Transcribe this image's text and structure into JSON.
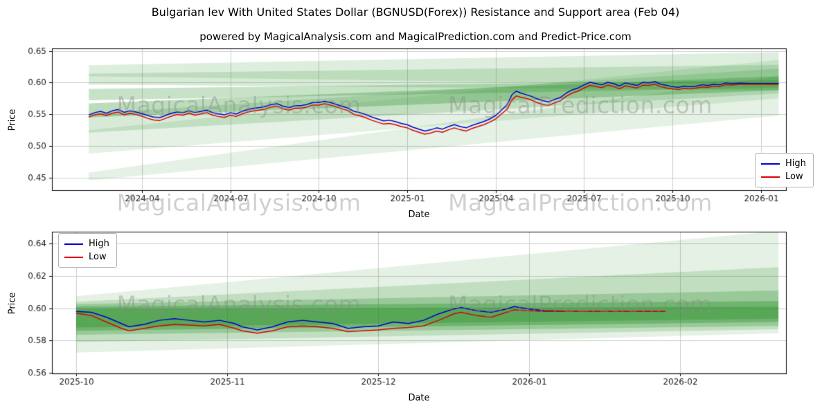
{
  "figure": {
    "title": "Bulgarian lev With United States Dollar (BGNUSD(Forex)) Resistance and Support area (Feb 04)",
    "subtitle": "powered by MagicalAnalysis.com and MagicalPrediction.com and Predict-Price.com",
    "watermarks": {
      "left": "MagicalAnalysis.com",
      "right": "MagicalPrediction.com"
    }
  },
  "chart_data": [
    {
      "type": "line",
      "title": "",
      "xlabel": "Date",
      "ylabel": "Price",
      "grid": true,
      "xlim": [
        -0.05,
        24.85
      ],
      "ylim": [
        0.43,
        0.654
      ],
      "xticks": {
        "values": [
          3,
          6,
          9,
          12,
          15,
          18,
          21,
          24
        ],
        "labels": [
          "2024-04",
          "2024-07",
          "2024-10",
          "2025-01",
          "2025-04",
          "2025-07",
          "2025-10",
          "2026-01"
        ]
      },
      "yticks": {
        "values": [
          0.45,
          0.5,
          0.55,
          0.6,
          0.65
        ],
        "labels": [
          "0.45",
          "0.50",
          "0.55",
          "0.60",
          "0.65"
        ]
      },
      "legend": {
        "position": "center-right",
        "entries": [
          {
            "label": "High",
            "color": "#0000cc"
          },
          {
            "label": "Low",
            "color": "#dd0000"
          }
        ]
      },
      "band_color": "#228b22",
      "bands": [
        {
          "alpha": 0.12,
          "t": [
            1.2,
            24.6
          ],
          "left": [
            0.4455,
            0.458
          ],
          "right": [
            0.548,
            0.61
          ]
        },
        {
          "alpha": 0.12,
          "t": [
            1.2,
            24.6
          ],
          "left": [
            0.488,
            0.525
          ],
          "right": [
            0.575,
            0.636
          ]
        },
        {
          "alpha": 0.18,
          "t": [
            1.2,
            24.6
          ],
          "left": [
            0.521,
            0.551
          ],
          "right": [
            0.583,
            0.622
          ]
        },
        {
          "alpha": 0.3,
          "t": [
            1.2,
            24.6
          ],
          "left": [
            0.545,
            0.567
          ],
          "right": [
            0.588,
            0.61
          ]
        },
        {
          "alpha": 0.25,
          "t": [
            1.2,
            24.6
          ],
          "left": [
            0.572,
            0.59
          ],
          "right": [
            0.592,
            0.604
          ]
        },
        {
          "alpha": 0.18,
          "t": [
            1.2,
            24.6
          ],
          "left": [
            0.597,
            0.614
          ],
          "right": [
            0.588,
            0.628
          ]
        },
        {
          "alpha": 0.15,
          "t": [
            1.2,
            24.6
          ],
          "left": [
            0.61,
            0.6275
          ],
          "right": [
            0.595,
            0.648
          ]
        }
      ],
      "series": [
        {
          "name": "High",
          "color": "#0000cc",
          "index": 1
        },
        {
          "name": "Low",
          "color": "#dd0000",
          "index": 2
        }
      ],
      "points": [
        [
          1.2,
          0.549,
          0.5455
        ],
        [
          1.4,
          0.5525,
          0.549
        ],
        [
          1.6,
          0.5545,
          0.5505
        ],
        [
          1.8,
          0.5515,
          0.548
        ],
        [
          2.0,
          0.5555,
          0.5515
        ],
        [
          2.2,
          0.5575,
          0.5535
        ],
        [
          2.4,
          0.553,
          0.549
        ],
        [
          2.6,
          0.5555,
          0.5515
        ],
        [
          2.8,
          0.5535,
          0.5495
        ],
        [
          3.0,
          0.551,
          0.547
        ],
        [
          3.2,
          0.548,
          0.5435
        ],
        [
          3.4,
          0.5455,
          0.541
        ],
        [
          3.6,
          0.5445,
          0.54
        ],
        [
          3.8,
          0.548,
          0.5435
        ],
        [
          4.0,
          0.5515,
          0.547
        ],
        [
          4.2,
          0.5535,
          0.5495
        ],
        [
          4.4,
          0.5525,
          0.5485
        ],
        [
          4.6,
          0.5555,
          0.5515
        ],
        [
          4.8,
          0.5525,
          0.5485
        ],
        [
          5.0,
          0.5545,
          0.5505
        ],
        [
          5.2,
          0.5565,
          0.5525
        ],
        [
          5.4,
          0.5525,
          0.5485
        ],
        [
          5.6,
          0.5505,
          0.5465
        ],
        [
          5.8,
          0.549,
          0.545
        ],
        [
          6.0,
          0.5525,
          0.5485
        ],
        [
          6.2,
          0.5505,
          0.5465
        ],
        [
          6.4,
          0.5545,
          0.5505
        ],
        [
          6.6,
          0.5575,
          0.5535
        ],
        [
          6.8,
          0.5595,
          0.5555
        ],
        [
          7.0,
          0.5605,
          0.5565
        ],
        [
          7.2,
          0.5625,
          0.5585
        ],
        [
          7.4,
          0.5655,
          0.5615
        ],
        [
          7.6,
          0.5665,
          0.5625
        ],
        [
          7.8,
          0.5625,
          0.5585
        ],
        [
          8.0,
          0.5605,
          0.5565
        ],
        [
          8.2,
          0.5635,
          0.5595
        ],
        [
          8.4,
          0.5635,
          0.5595
        ],
        [
          8.6,
          0.5655,
          0.5615
        ],
        [
          8.8,
          0.5685,
          0.5645
        ],
        [
          9.0,
          0.5685,
          0.5645
        ],
        [
          9.2,
          0.5705,
          0.5665
        ],
        [
          9.4,
          0.5685,
          0.5645
        ],
        [
          9.6,
          0.5655,
          0.5615
        ],
        [
          9.8,
          0.5625,
          0.5585
        ],
        [
          10.0,
          0.5595,
          0.5555
        ],
        [
          10.2,
          0.5545,
          0.5495
        ],
        [
          10.4,
          0.5525,
          0.5475
        ],
        [
          10.6,
          0.5495,
          0.5445
        ],
        [
          10.8,
          0.5455,
          0.5405
        ],
        [
          11.0,
          0.5425,
          0.5375
        ],
        [
          11.2,
          0.5395,
          0.5345
        ],
        [
          11.4,
          0.5405,
          0.5355
        ],
        [
          11.6,
          0.5385,
          0.5335
        ],
        [
          11.8,
          0.5355,
          0.5305
        ],
        [
          12.0,
          0.5335,
          0.5285
        ],
        [
          12.2,
          0.5295,
          0.5245
        ],
        [
          12.4,
          0.5265,
          0.5215
        ],
        [
          12.6,
          0.5235,
          0.5185
        ],
        [
          12.8,
          0.5255,
          0.5205
        ],
        [
          13.0,
          0.5285,
          0.5235
        ],
        [
          13.2,
          0.5265,
          0.5215
        ],
        [
          13.4,
          0.5305,
          0.5255
        ],
        [
          13.6,
          0.5335,
          0.5285
        ],
        [
          13.8,
          0.5305,
          0.5255
        ],
        [
          14.0,
          0.5285,
          0.5235
        ],
        [
          14.2,
          0.5325,
          0.5275
        ],
        [
          14.4,
          0.5355,
          0.5305
        ],
        [
          14.6,
          0.5385,
          0.5335
        ],
        [
          14.8,
          0.5425,
          0.5375
        ],
        [
          15.0,
          0.548,
          0.5425
        ],
        [
          15.2,
          0.5565,
          0.5505
        ],
        [
          15.4,
          0.5655,
          0.5585
        ],
        [
          15.55,
          0.5805,
          0.5725
        ],
        [
          15.7,
          0.5865,
          0.579
        ],
        [
          15.85,
          0.5835,
          0.577
        ],
        [
          16.0,
          0.5815,
          0.5755
        ],
        [
          16.2,
          0.5785,
          0.5725
        ],
        [
          16.4,
          0.5745,
          0.5685
        ],
        [
          16.6,
          0.5715,
          0.5655
        ],
        [
          16.8,
          0.5695,
          0.564
        ],
        [
          17.0,
          0.5735,
          0.568
        ],
        [
          17.2,
          0.5765,
          0.5715
        ],
        [
          17.4,
          0.5835,
          0.5785
        ],
        [
          17.6,
          0.5885,
          0.5835
        ],
        [
          17.8,
          0.5915,
          0.5865
        ],
        [
          18.0,
          0.5965,
          0.5915
        ],
        [
          18.2,
          0.6005,
          0.5955
        ],
        [
          18.4,
          0.5985,
          0.594
        ],
        [
          18.6,
          0.5965,
          0.592
        ],
        [
          18.8,
          0.6005,
          0.596
        ],
        [
          19.0,
          0.5985,
          0.594
        ],
        [
          19.2,
          0.5945,
          0.59
        ],
        [
          19.4,
          0.5995,
          0.595
        ],
        [
          19.6,
          0.5975,
          0.593
        ],
        [
          19.8,
          0.5955,
          0.5915
        ],
        [
          20.0,
          0.6005,
          0.596
        ],
        [
          20.2,
          0.5995,
          0.5955
        ],
        [
          20.4,
          0.6015,
          0.5975
        ],
        [
          20.6,
          0.5975,
          0.5935
        ],
        [
          20.8,
          0.5955,
          0.5915
        ],
        [
          21.0,
          0.5935,
          0.59
        ],
        [
          21.2,
          0.5925,
          0.589
        ],
        [
          21.4,
          0.5945,
          0.591
        ],
        [
          21.6,
          0.5935,
          0.59
        ],
        [
          21.8,
          0.5945,
          0.5915
        ],
        [
          22.0,
          0.5965,
          0.593
        ],
        [
          22.2,
          0.5955,
          0.5925
        ],
        [
          22.4,
          0.5975,
          0.5945
        ],
        [
          22.6,
          0.5965,
          0.594
        ],
        [
          22.8,
          0.5995,
          0.5965
        ],
        [
          23.0,
          0.5985,
          0.596
        ],
        [
          23.3,
          0.599,
          0.5975
        ],
        [
          23.6,
          0.5985,
          0.5975
        ],
        [
          24.0,
          0.5985,
          0.5975
        ],
        [
          24.6,
          0.5985,
          0.5975
        ]
      ]
    },
    {
      "type": "line",
      "title": "",
      "xlabel": "Date",
      "ylabel": "Price",
      "grid": true,
      "xlim": [
        -0.16,
        4.7
      ],
      "ylim": [
        0.5595,
        0.6475
      ],
      "xticks": {
        "values": [
          0,
          1,
          2,
          3,
          4
        ],
        "labels": [
          "2025-10",
          "2025-11",
          "2025-12",
          "2026-01",
          "2026-02"
        ]
      },
      "yticks": {
        "values": [
          0.56,
          0.58,
          0.6,
          0.62,
          0.64
        ],
        "labels": [
          "0.56",
          "0.58",
          "0.60",
          "0.62",
          "0.64"
        ]
      },
      "legend": {
        "position": "top-left",
        "entries": [
          {
            "label": "High",
            "color": "#0000cc"
          },
          {
            "label": "Low",
            "color": "#dd0000"
          }
        ]
      },
      "band_color": "#228b22",
      "bands": [
        {
          "alpha": 0.12,
          "t": [
            0.0,
            4.65
          ],
          "left": [
            0.5725,
            0.6075
          ],
          "right": [
            0.5845,
            0.648
          ]
        },
        {
          "alpha": 0.18,
          "t": [
            0.0,
            4.65
          ],
          "left": [
            0.579,
            0.604
          ],
          "right": [
            0.587,
            0.6255
          ]
        },
        {
          "alpha": 0.25,
          "t": [
            0.0,
            4.65
          ],
          "left": [
            0.5835,
            0.6025
          ],
          "right": [
            0.589,
            0.611
          ]
        },
        {
          "alpha": 0.35,
          "t": [
            0.0,
            4.65
          ],
          "left": [
            0.586,
            0.601
          ],
          "right": [
            0.5915,
            0.6045
          ]
        },
        {
          "alpha": 0.3,
          "t": [
            0.0,
            4.65
          ],
          "left": [
            0.588,
            0.5995
          ],
          "right": [
            0.5935,
            0.601
          ]
        }
      ],
      "series": [
        {
          "name": "High",
          "color": "#0000cc",
          "index": 1
        },
        {
          "name": "Low",
          "color": "#dd0000",
          "index": 2
        }
      ],
      "points": [
        [
          0.0,
          0.598,
          0.597
        ],
        [
          0.1,
          0.5975,
          0.5955
        ],
        [
          0.2,
          0.5945,
          0.5915
        ],
        [
          0.3,
          0.5905,
          0.5875
        ],
        [
          0.35,
          0.5885,
          0.586
        ],
        [
          0.45,
          0.59,
          0.5875
        ],
        [
          0.55,
          0.5925,
          0.589
        ],
        [
          0.65,
          0.5935,
          0.59
        ],
        [
          0.75,
          0.5925,
          0.5895
        ],
        [
          0.85,
          0.5915,
          0.589
        ],
        [
          0.95,
          0.5925,
          0.59
        ],
        [
          1.05,
          0.5905,
          0.5875
        ],
        [
          1.1,
          0.5885,
          0.586
        ],
        [
          1.2,
          0.5865,
          0.5845
        ],
        [
          1.3,
          0.5885,
          0.586
        ],
        [
          1.4,
          0.5915,
          0.5885
        ],
        [
          1.5,
          0.5925,
          0.589
        ],
        [
          1.6,
          0.5915,
          0.5885
        ],
        [
          1.7,
          0.5905,
          0.5875
        ],
        [
          1.8,
          0.5875,
          0.5855
        ],
        [
          1.9,
          0.5885,
          0.586
        ],
        [
          2.0,
          0.589,
          0.5865
        ],
        [
          2.1,
          0.5915,
          0.5875
        ],
        [
          2.2,
          0.5905,
          0.588
        ],
        [
          2.3,
          0.5925,
          0.589
        ],
        [
          2.4,
          0.5965,
          0.5925
        ],
        [
          2.5,
          0.5995,
          0.5965
        ],
        [
          2.55,
          0.6005,
          0.5975
        ],
        [
          2.65,
          0.5985,
          0.5955
        ],
        [
          2.75,
          0.5975,
          0.5945
        ],
        [
          2.85,
          0.5995,
          0.5975
        ],
        [
          2.9,
          0.601,
          0.599
        ],
        [
          3.0,
          0.5995,
          0.5985
        ],
        [
          3.1,
          0.5985,
          0.598
        ],
        [
          3.3,
          0.598,
          0.598
        ],
        [
          3.9,
          0.598,
          0.598
        ]
      ]
    }
  ]
}
